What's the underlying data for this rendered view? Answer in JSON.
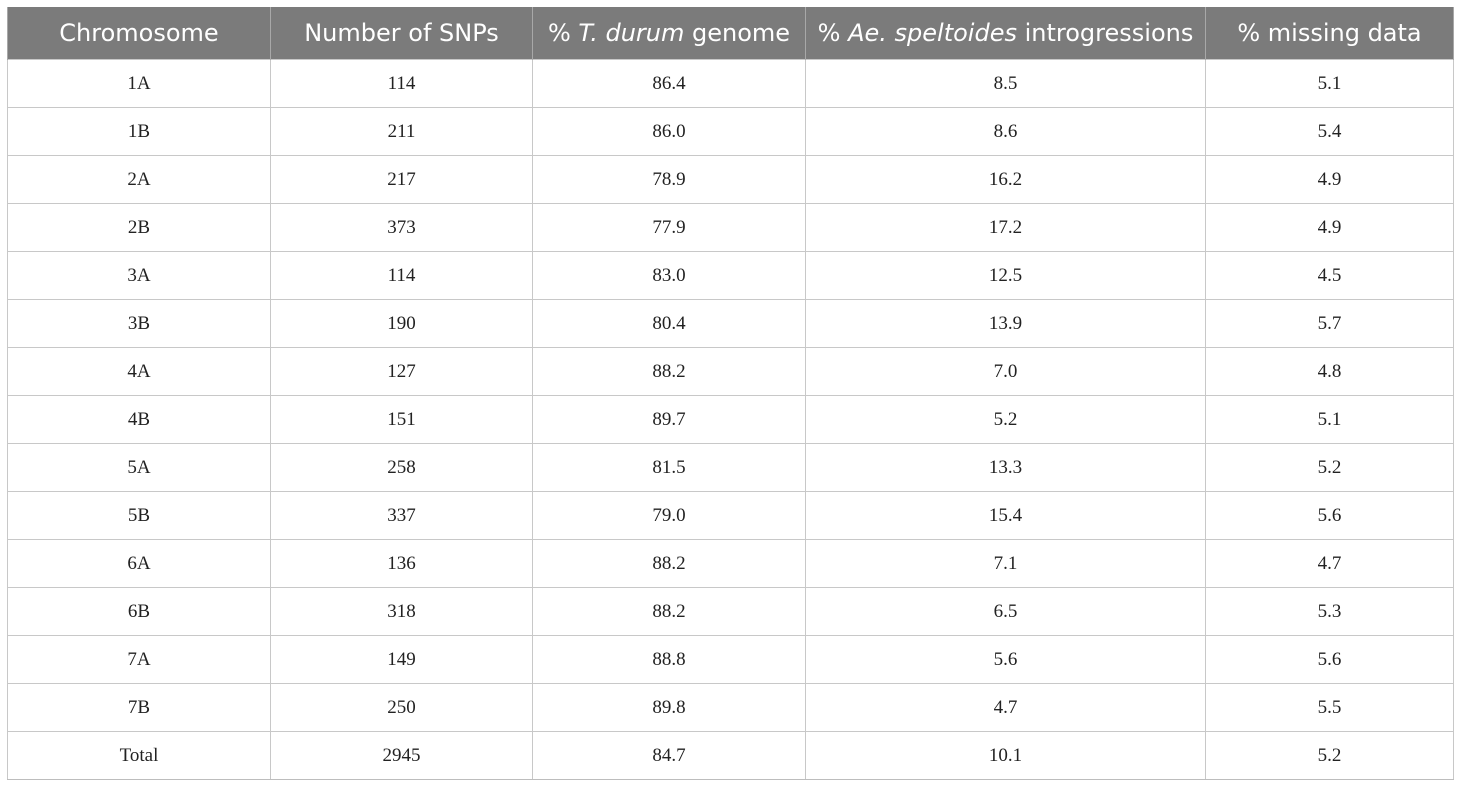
{
  "table": {
    "headers": [
      {
        "prefix": "Chromosome",
        "italic": "",
        "suffix": ""
      },
      {
        "prefix": "Number of SNPs",
        "italic": "",
        "suffix": ""
      },
      {
        "prefix": "% ",
        "italic": "T. durum",
        "suffix": " genome"
      },
      {
        "prefix": "% ",
        "italic": "Ae. speltoides",
        "suffix": " introgressions"
      },
      {
        "prefix": "% missing data",
        "italic": "",
        "suffix": ""
      }
    ],
    "rows": [
      [
        "1A",
        "114",
        "86.4",
        "8.5",
        "5.1"
      ],
      [
        "1B",
        "211",
        "86.0",
        "8.6",
        "5.4"
      ],
      [
        "2A",
        "217",
        "78.9",
        "16.2",
        "4.9"
      ],
      [
        "2B",
        "373",
        "77.9",
        "17.2",
        "4.9"
      ],
      [
        "3A",
        "114",
        "83.0",
        "12.5",
        "4.5"
      ],
      [
        "3B",
        "190",
        "80.4",
        "13.9",
        "5.7"
      ],
      [
        "4A",
        "127",
        "88.2",
        "7.0",
        "4.8"
      ],
      [
        "4B",
        "151",
        "89.7",
        "5.2",
        "5.1"
      ],
      [
        "5A",
        "258",
        "81.5",
        "13.3",
        "5.2"
      ],
      [
        "5B",
        "337",
        "79.0",
        "15.4",
        "5.6"
      ],
      [
        "6A",
        "136",
        "88.2",
        "7.1",
        "4.7"
      ],
      [
        "6B",
        "318",
        "88.2",
        "6.5",
        "5.3"
      ],
      [
        "7A",
        "149",
        "88.8",
        "5.6",
        "5.6"
      ],
      [
        "7B",
        "250",
        "89.8",
        "4.7",
        "5.5"
      ],
      [
        "Total",
        "2945",
        "84.7",
        "10.1",
        "5.2"
      ]
    ]
  }
}
